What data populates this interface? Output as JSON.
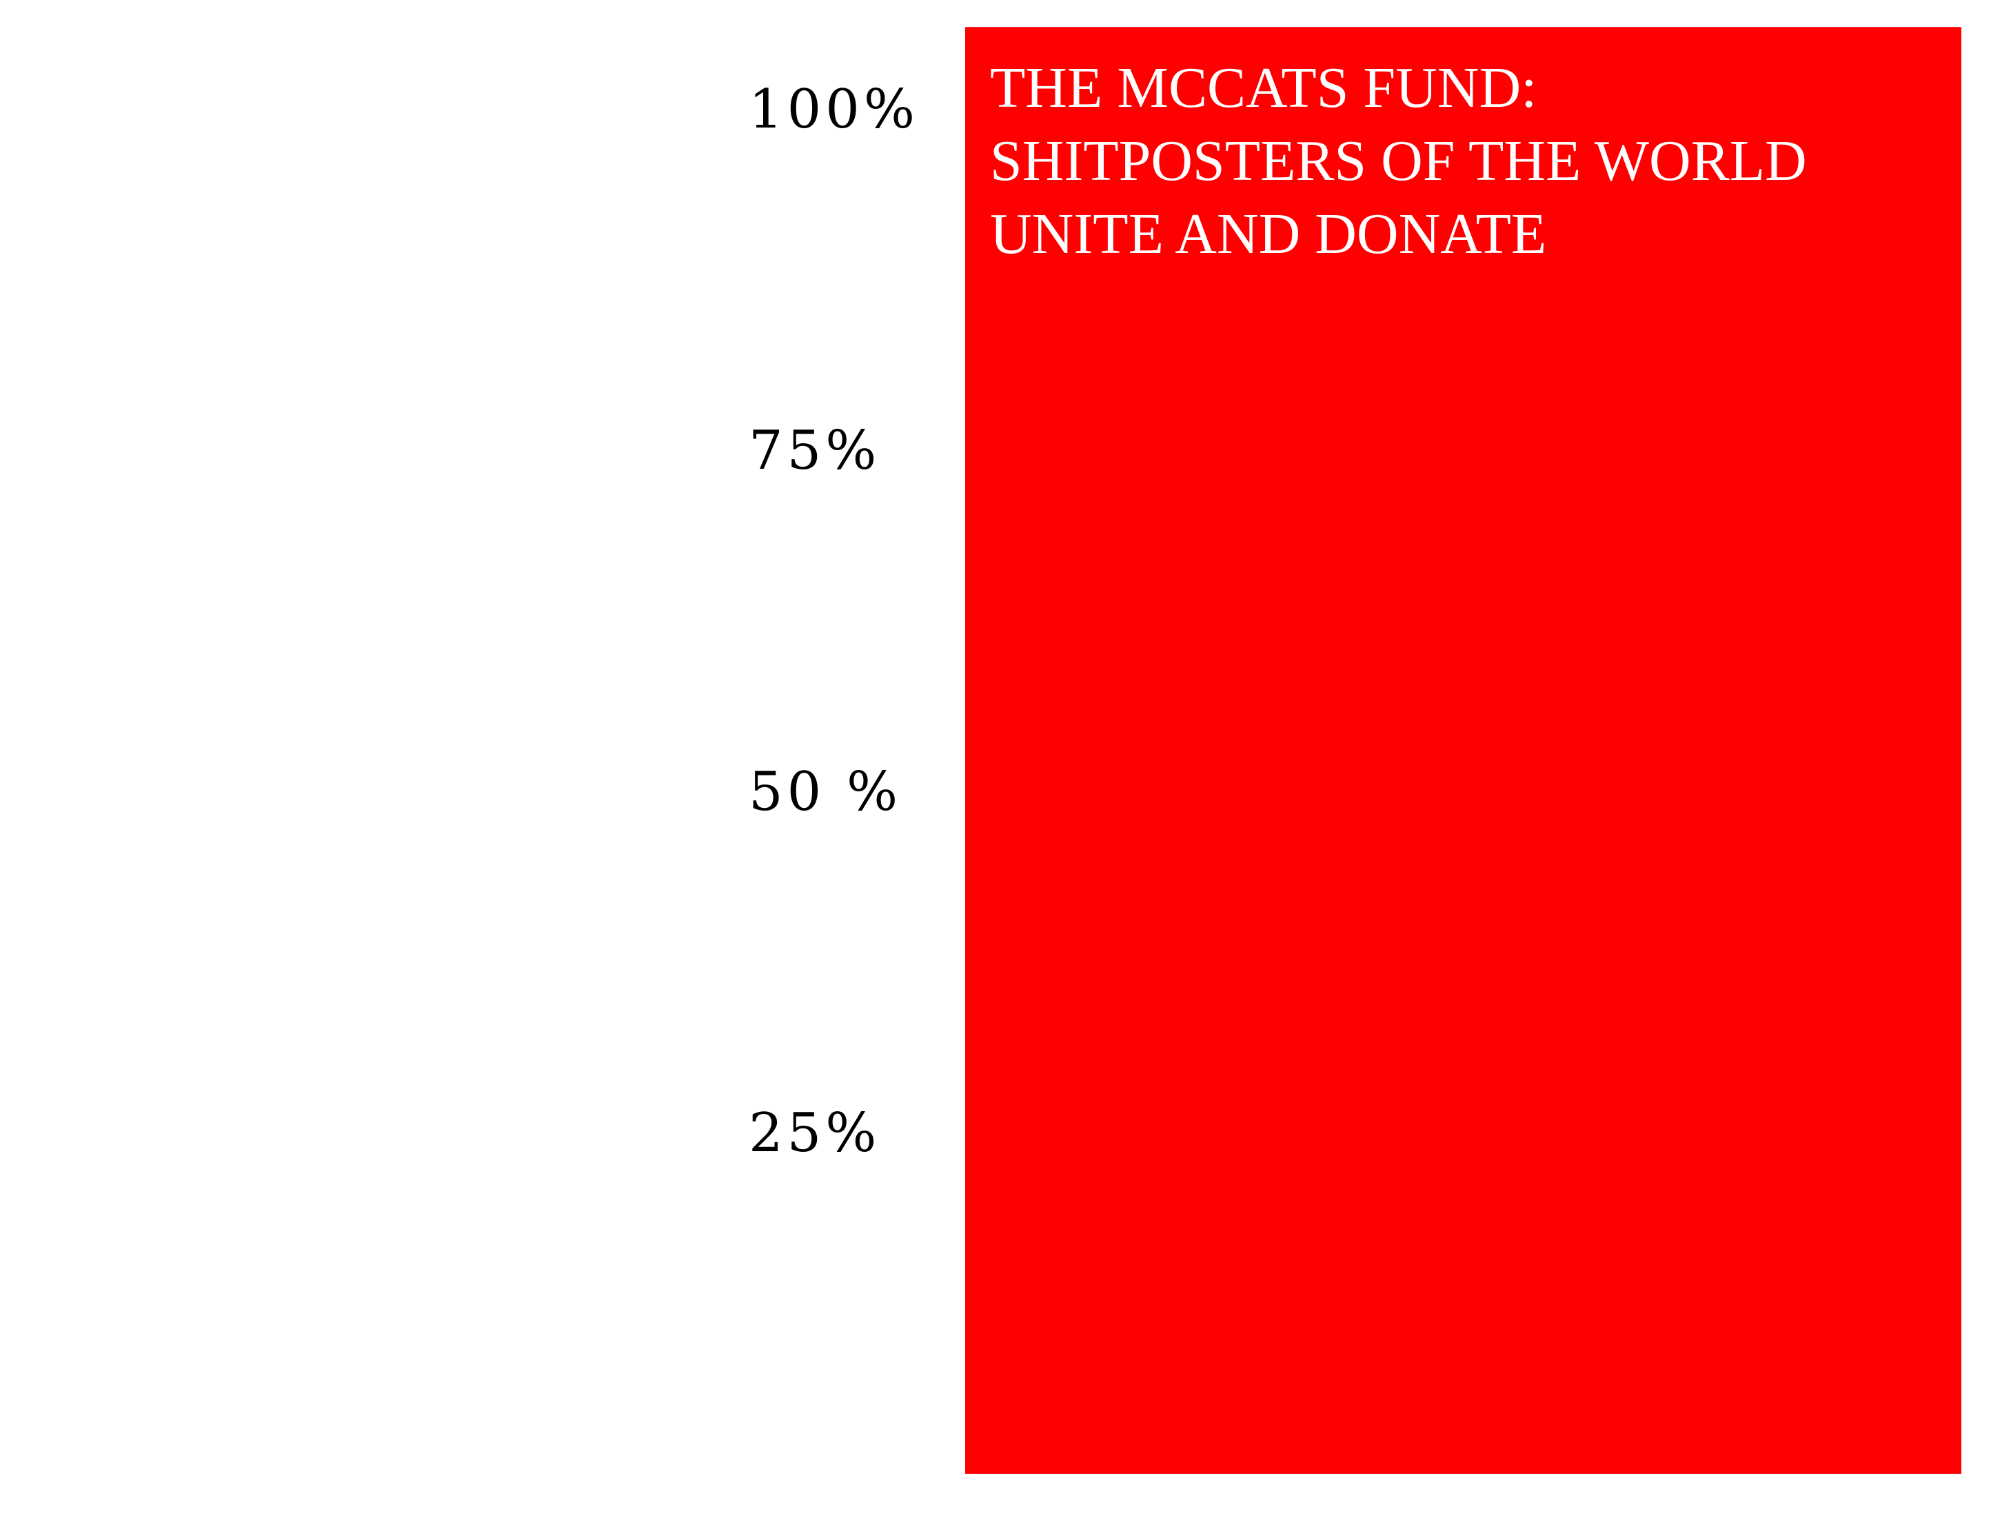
{
  "chart_data": {
    "type": "bar",
    "title_lines": [
      "THE MCCATS FUND:",
      "SHITPOSTERS OF THE WORLD",
      "UNITE AND DONATE"
    ],
    "ytick_labels": [
      "100%",
      "75%",
      "50 %",
      "25%"
    ],
    "yticks": [
      100,
      75,
      50,
      25
    ],
    "values": [
      106
    ],
    "ylim": [
      0,
      106
    ],
    "grid": false,
    "legend": "none",
    "colors": {
      "bar": "#ff0000",
      "title_text": "#ffffff",
      "tick_text": "#000000",
      "background": "#ffffff"
    }
  }
}
